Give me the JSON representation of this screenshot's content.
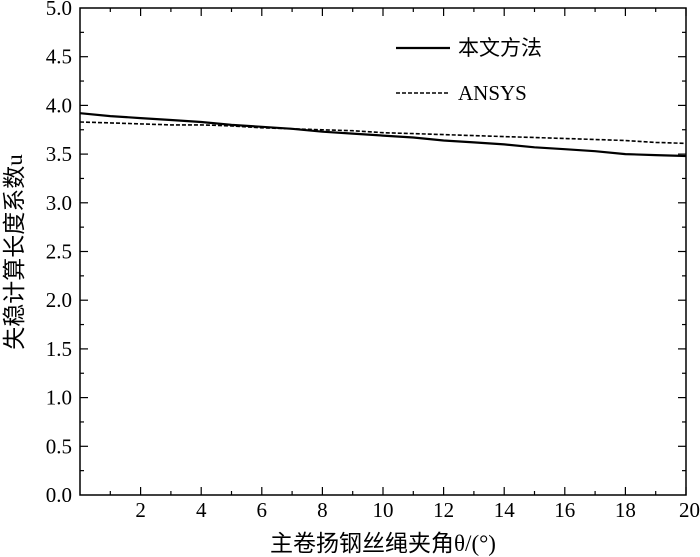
{
  "chart_data": {
    "type": "line",
    "title": "",
    "xlabel": "主卷扬钢丝绳夹角θ/(°)",
    "ylabel": "失稳计算长度系数u",
    "xlim": [
      0,
      20
    ],
    "ylim": [
      0.0,
      5.0
    ],
    "x_ticks": [
      "2",
      "4",
      "6",
      "8",
      "10",
      "12",
      "14",
      "16",
      "18",
      "20"
    ],
    "y_ticks": [
      "0.0",
      "0.5",
      "1.0",
      "1.5",
      "2.0",
      "2.5",
      "3.0",
      "3.5",
      "4.0",
      "4.5",
      "5.0"
    ],
    "grid": false,
    "legend_position": "top-right",
    "series": [
      {
        "name": "本文方法",
        "style": "solid",
        "color": "#000000",
        "x": [
          0,
          1,
          2,
          3,
          4,
          5,
          6,
          7,
          8,
          9,
          10,
          11,
          12,
          13,
          14,
          15,
          16,
          17,
          18,
          19,
          20
        ],
        "y": [
          3.92,
          3.89,
          3.87,
          3.85,
          3.83,
          3.8,
          3.78,
          3.76,
          3.73,
          3.71,
          3.69,
          3.67,
          3.64,
          3.62,
          3.6,
          3.57,
          3.55,
          3.53,
          3.5,
          3.49,
          3.48
        ]
      },
      {
        "name": "ANSYS",
        "style": "dashed",
        "color": "#000000",
        "x": [
          0,
          1,
          2,
          3,
          4,
          5,
          6,
          7,
          8,
          9,
          10,
          11,
          12,
          13,
          14,
          15,
          16,
          17,
          18,
          19,
          20
        ],
        "y": [
          3.83,
          3.82,
          3.81,
          3.8,
          3.8,
          3.79,
          3.77,
          3.76,
          3.75,
          3.74,
          3.72,
          3.71,
          3.7,
          3.69,
          3.68,
          3.67,
          3.66,
          3.65,
          3.64,
          3.62,
          3.61
        ]
      }
    ]
  }
}
